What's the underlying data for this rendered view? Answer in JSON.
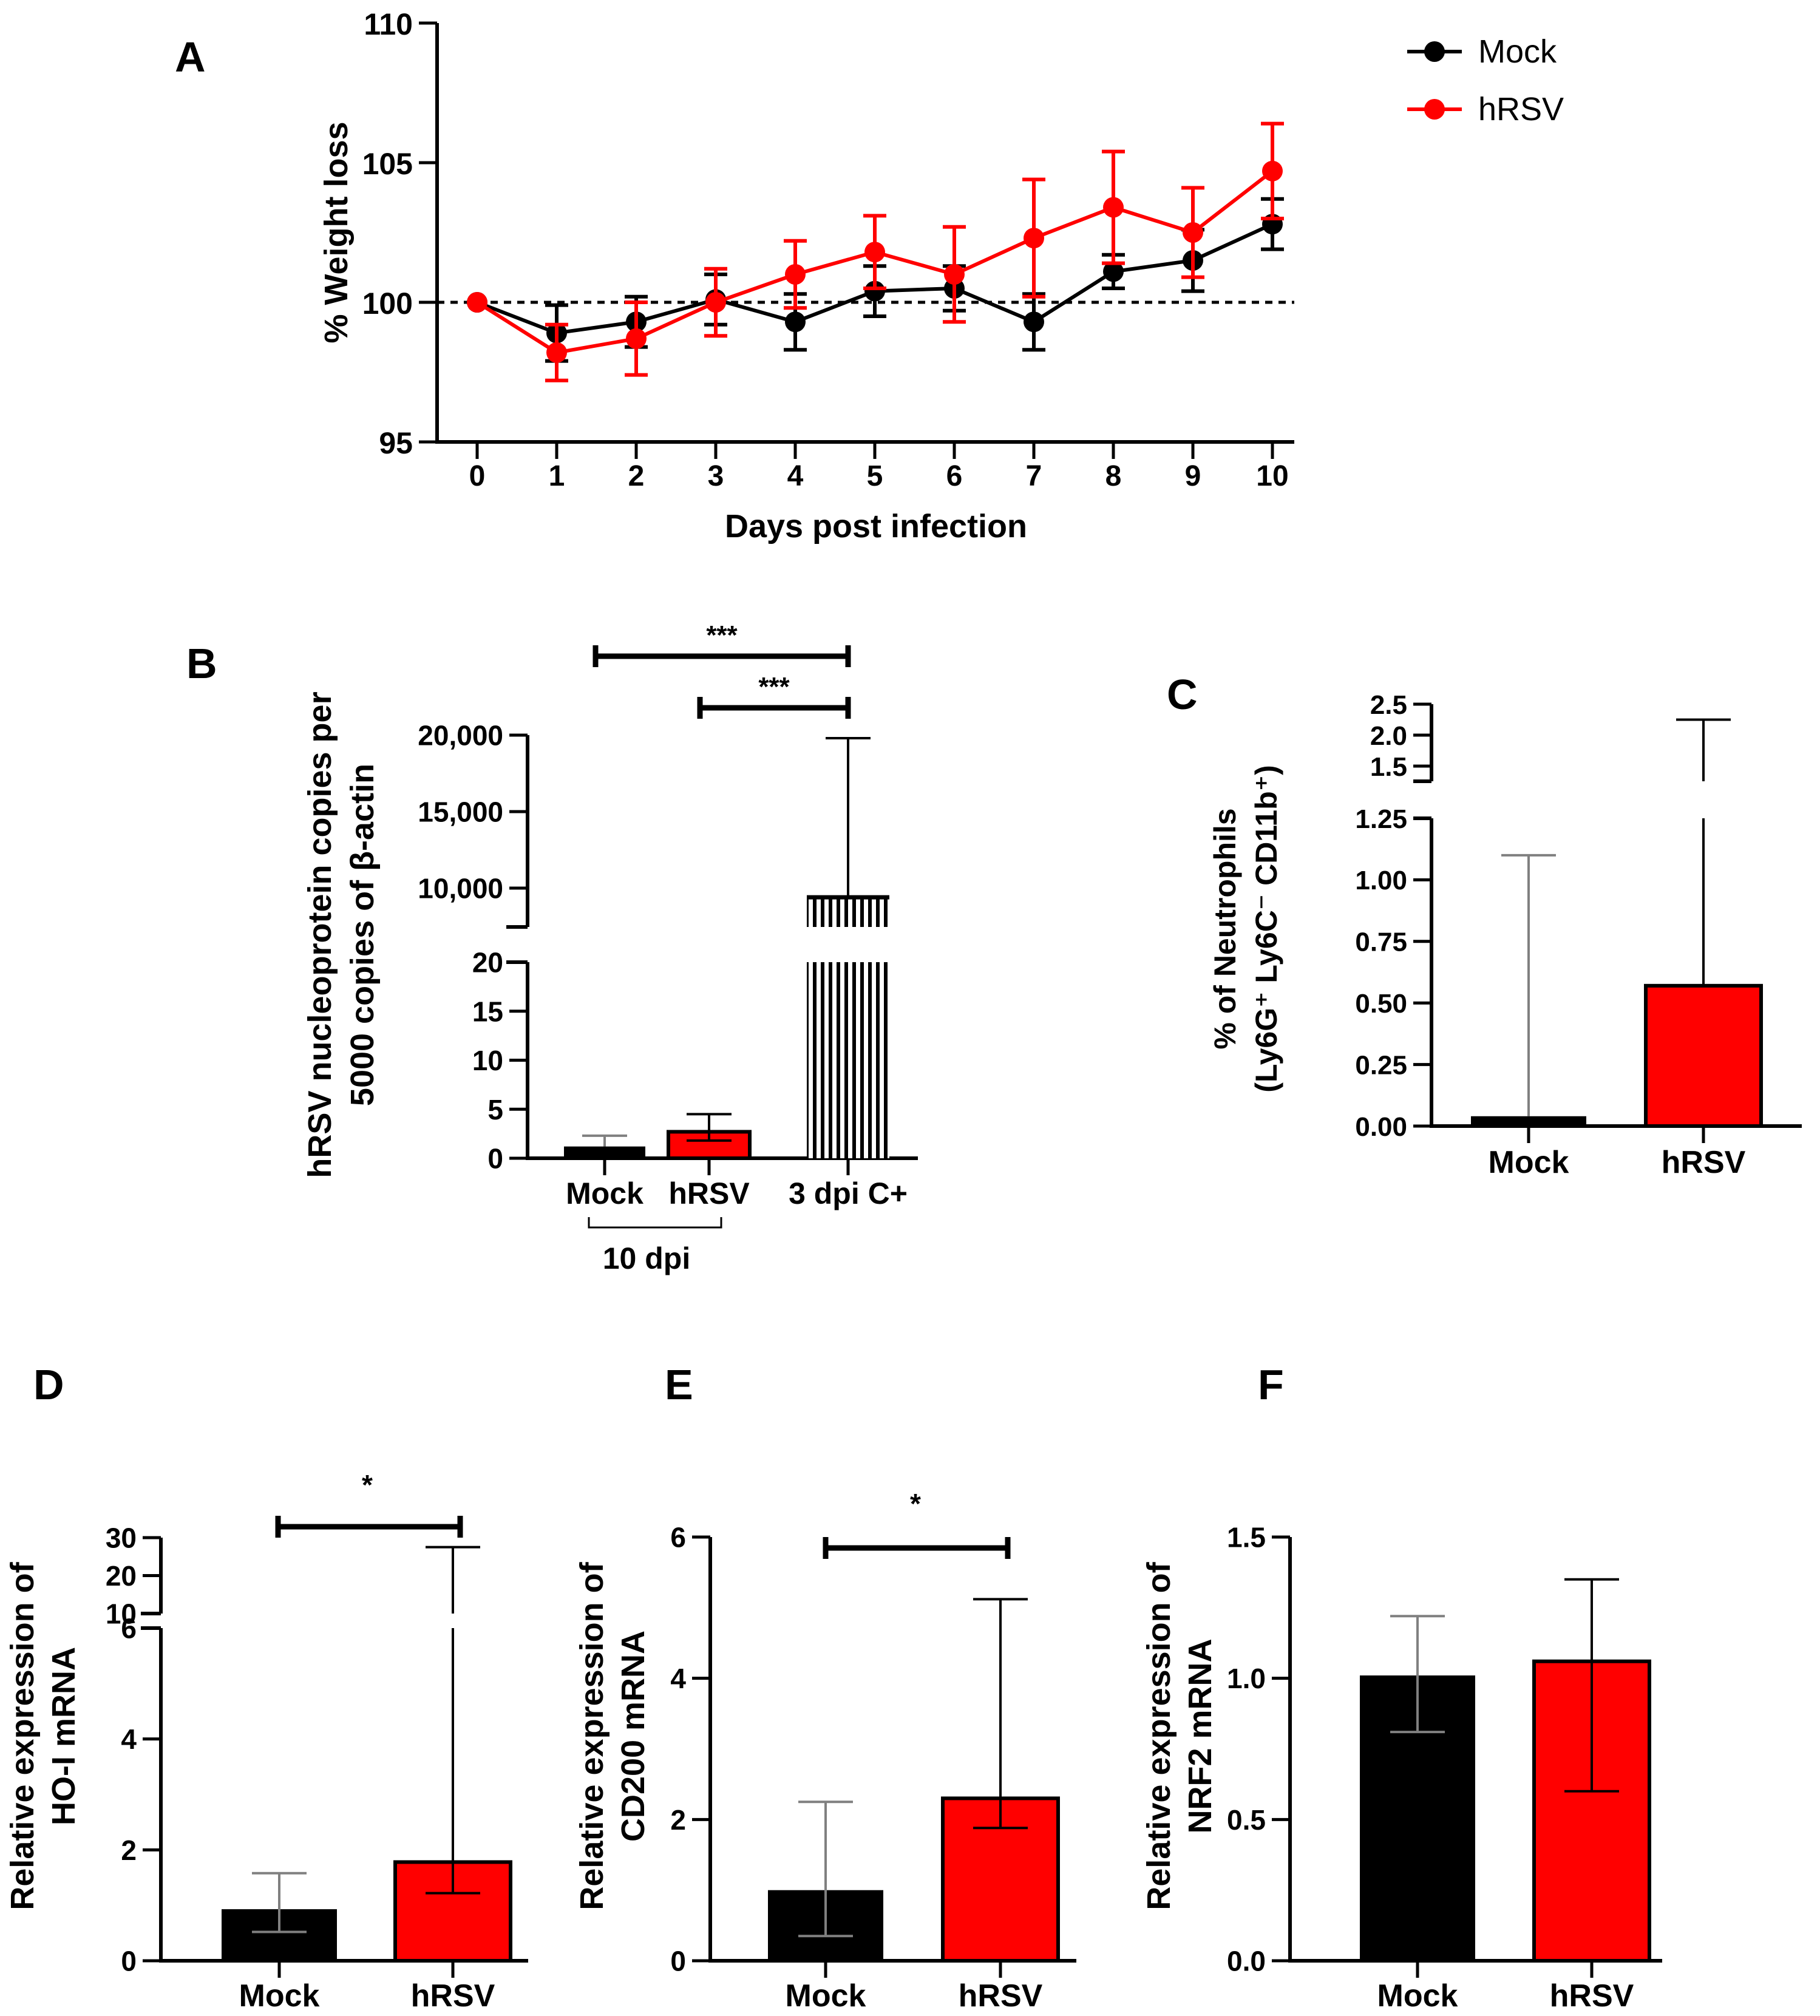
{
  "colors": {
    "mock": "#000000",
    "hrsv": "#ff0000",
    "hatch": "#000000",
    "whisker_mock": "#808080"
  },
  "panel_letters": {
    "A": "A",
    "B": "B",
    "C": "C",
    "D": "D",
    "E": "E",
    "F": "F"
  },
  "chart_data": [
    {
      "panel": "A",
      "type": "line",
      "xlabel": "Days post infection",
      "ylabel": "% Weight loss",
      "x": [
        0,
        1,
        2,
        3,
        4,
        5,
        6,
        7,
        8,
        9,
        10
      ],
      "x_tick_labels": [
        "0",
        "1",
        "2",
        "3",
        "4",
        "5",
        "6",
        "7",
        "8",
        "9",
        "10"
      ],
      "y_tick_labels": [
        "95",
        "100",
        "105",
        "110"
      ],
      "ylim": [
        95,
        110
      ],
      "reference_line": 100,
      "legend": {
        "placement": "top-right",
        "entries": [
          "Mock",
          "hRSV"
        ]
      },
      "series": [
        {
          "name": "Mock",
          "values": [
            100,
            98.9,
            99.3,
            100.1,
            99.3,
            100.4,
            100.5,
            99.3,
            101.1,
            101.5,
            102.8
          ],
          "err": [
            0,
            1.0,
            0.9,
            0.9,
            1.0,
            0.9,
            0.8,
            1.0,
            0.6,
            1.1,
            0.9
          ]
        },
        {
          "name": "hRSV",
          "values": [
            100,
            98.2,
            98.7,
            100.0,
            101.0,
            101.8,
            101.0,
            102.3,
            103.4,
            102.5,
            104.7
          ],
          "err": [
            0,
            1.0,
            1.3,
            1.2,
            1.2,
            1.3,
            1.7,
            2.1,
            2.0,
            1.6,
            1.7
          ]
        }
      ]
    },
    {
      "panel": "B",
      "type": "bar",
      "ylabel_line1": "hRSV nucleoprotein copies per",
      "ylabel_line2": "5000 copies of β-actin",
      "categories": [
        "Mock",
        "hRSV",
        "3 dpi C+"
      ],
      "group_label": "10 dpi",
      "values": [
        1.2,
        2.7,
        9400
      ],
      "err_upper": [
        2.3,
        4.5,
        19800
      ],
      "err_lower": [
        null,
        1.8,
        null
      ],
      "y_segments": [
        {
          "range": [
            0,
            20
          ],
          "tick_labels": [
            "0",
            "5",
            "10",
            "15",
            "20"
          ]
        },
        {
          "range": [
            7600,
            20000
          ],
          "tick_labels": [
            "10,000",
            "15,000",
            "20,000"
          ]
        }
      ],
      "significance": [
        {
          "from": "Mock",
          "to": "3 dpi C+",
          "label": "***"
        },
        {
          "from": "hRSV",
          "to": "3 dpi C+",
          "label": "***"
        }
      ]
    },
    {
      "panel": "C",
      "type": "bar",
      "ylabel_line1": "% of Neutrophils",
      "ylabel_line2": "(Ly6G⁺ Ly6C⁻ CD11b⁺)",
      "categories": [
        "Mock",
        "hRSV"
      ],
      "values": [
        0.04,
        0.57
      ],
      "err_upper": [
        1.1,
        2.25
      ],
      "y_segments": [
        {
          "range": [
            0,
            1.25
          ],
          "tick_labels": [
            "0.00",
            "0.25",
            "0.50",
            "0.75",
            "1.00",
            "1.25"
          ]
        },
        {
          "range": [
            1.4,
            2.5
          ],
          "tick_labels": [
            "1.5",
            "2.0",
            "2.5"
          ]
        }
      ]
    },
    {
      "panel": "D",
      "type": "bar",
      "ylabel_line1": "Relative expression of",
      "ylabel_line2": "HO-I mRNA",
      "categories": [
        "Mock",
        "hRSV"
      ],
      "values": [
        0.93,
        1.78
      ],
      "err_upper": [
        1.58,
        27.5
      ],
      "err_lower": [
        0.52,
        1.22
      ],
      "y_segments": [
        {
          "range": [
            0,
            6
          ],
          "tick_labels": [
            "0",
            "2",
            "4",
            "6"
          ]
        },
        {
          "range": [
            10,
            30
          ],
          "tick_labels": [
            "10",
            "20",
            "30"
          ]
        }
      ],
      "significance": [
        {
          "from": "Mock",
          "to": "hRSV",
          "label": "*"
        }
      ]
    },
    {
      "panel": "E",
      "type": "bar",
      "ylabel_line1": "Relative expression of",
      "ylabel_line2": "CD200 mRNA",
      "categories": [
        "Mock",
        "hRSV"
      ],
      "values": [
        1.0,
        2.3
      ],
      "err_upper": [
        2.25,
        5.12
      ],
      "err_lower": [
        0.35,
        1.88
      ],
      "ylim": [
        0,
        6
      ],
      "y_tick_labels": [
        "0",
        "2",
        "4",
        "6"
      ],
      "significance": [
        {
          "from": "Mock",
          "to": "hRSV",
          "label": "*"
        }
      ]
    },
    {
      "panel": "F",
      "type": "bar",
      "ylabel_line1": "Relative expression of",
      "ylabel_line2": "NRF2 mRNA",
      "categories": [
        "Mock",
        "hRSV"
      ],
      "values": [
        1.01,
        1.06
      ],
      "err_upper": [
        1.22,
        1.35
      ],
      "err_lower": [
        0.81,
        0.6
      ],
      "ylim": [
        0,
        1.5
      ],
      "y_tick_labels": [
        "0.0",
        "0.5",
        "1.0",
        "1.5"
      ]
    }
  ]
}
